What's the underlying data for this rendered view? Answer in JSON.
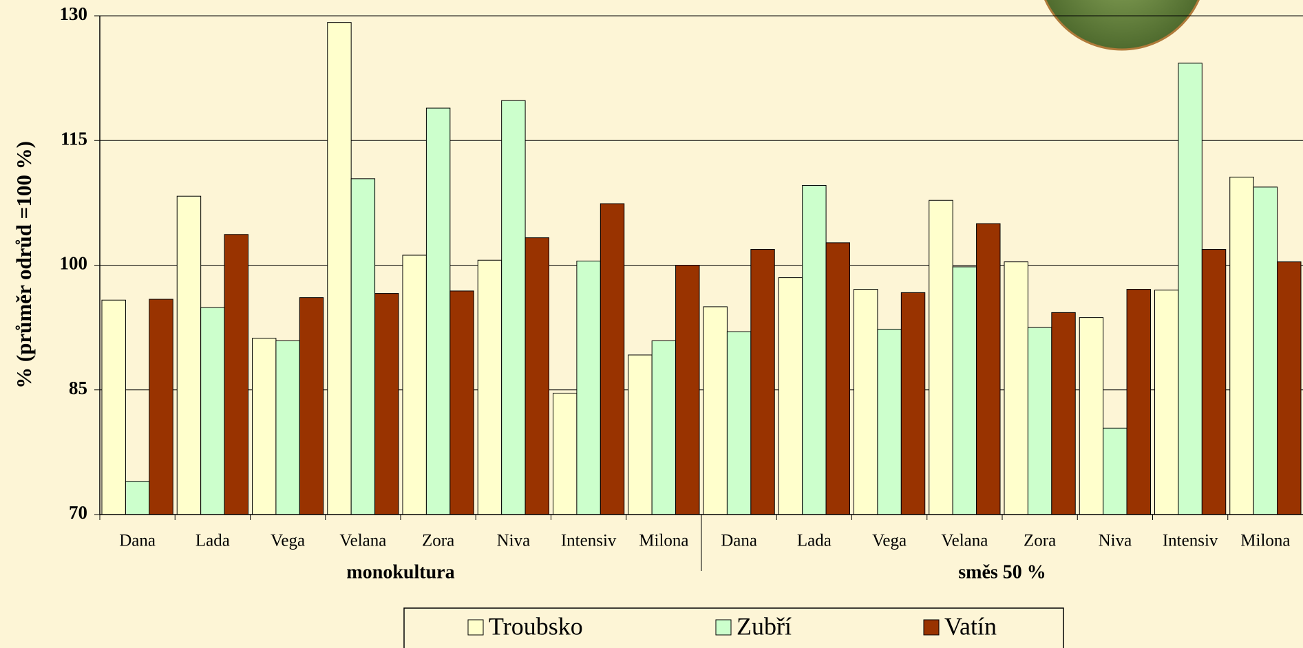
{
  "chart_data": {
    "type": "bar",
    "ylabel": "% (průměr odrůd =100 %)",
    "categories": [
      "Dana",
      "Lada",
      "Vega",
      "Velana",
      "Zora",
      "Niva",
      "Intensiv",
      "Milona",
      "Dana",
      "Lada",
      "Vega",
      "Velana",
      "Zora",
      "Niva",
      "Intensiv",
      "Milona"
    ],
    "groups": [
      "monokultura",
      "směs 50 %"
    ],
    "series": [
      {
        "name": "Troubsko",
        "color": "#ffffcc",
        "values": [
          95.8,
          108.3,
          91.2,
          129.2,
          101.2,
          100.6,
          84.6,
          89.2,
          95.0,
          98.5,
          97.1,
          107.8,
          100.4,
          93.7,
          97.0,
          110.6
        ]
      },
      {
        "name": "Zubří",
        "color": "#ccffcc",
        "values": [
          74.0,
          94.9,
          90.9,
          110.4,
          118.9,
          119.8,
          100.5,
          90.9,
          92.0,
          109.6,
          92.3,
          99.8,
          92.5,
          80.4,
          124.3,
          109.4
        ]
      },
      {
        "name": "Vatín",
        "color": "#993300",
        "values": [
          95.9,
          103.7,
          96.1,
          96.6,
          96.9,
          103.3,
          107.4,
          100.0,
          101.9,
          102.7,
          96.7,
          105.0,
          94.3,
          97.1,
          101.9,
          100.4
        ]
      }
    ],
    "ylim": [
      70,
      130
    ],
    "yticks": [
      70,
      85,
      100,
      115,
      130
    ],
    "grid": true,
    "legend": "bottom"
  }
}
